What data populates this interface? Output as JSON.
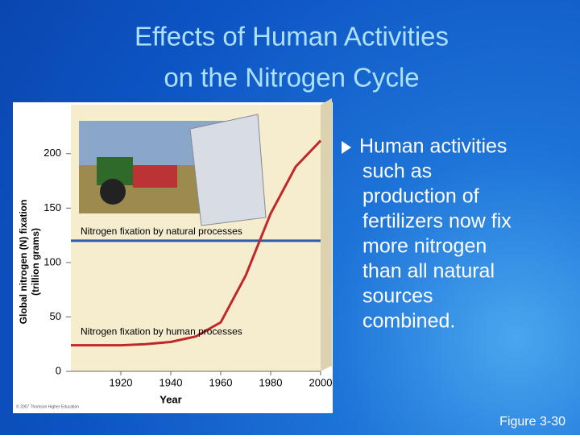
{
  "slide": {
    "title": [
      "Effects of Human Activities",
      "on the Nitrogen Cycle"
    ],
    "bullet": [
      "Human activities",
      "such as",
      "production of",
      "fertilizers now fix",
      "more nitrogen",
      "than all natural",
      "sources",
      "combined."
    ],
    "figure_label": "Figure 3-30",
    "copyright": "© 2007 Thomson Higher Education"
  },
  "chart_data": {
    "type": "line",
    "x_label": "Year",
    "y_label": [
      "Global nitrogen (N) fixation",
      "(trillion grams)"
    ],
    "x": [
      1900,
      1910,
      1920,
      1930,
      1940,
      1950,
      1960,
      1970,
      1980,
      1990,
      2000
    ],
    "series": [
      {
        "name": "Nitrogen fixation by natural processes",
        "color": "#2e5aa8",
        "values": [
          120,
          120,
          120,
          120,
          120,
          120,
          120,
          120,
          120,
          120,
          120
        ]
      },
      {
        "name": "Nitrogen fixation by human processes",
        "color": "#c0282a",
        "values": [
          24,
          24,
          24,
          25,
          27,
          32,
          45,
          88,
          145,
          188,
          212
        ]
      }
    ],
    "xlim": [
      1900,
      2000
    ],
    "xticks": [
      1920,
      1940,
      1960,
      1980,
      2000
    ],
    "ylim": [
      0,
      245
    ],
    "yticks": [
      0,
      50,
      100,
      150,
      200
    ]
  }
}
